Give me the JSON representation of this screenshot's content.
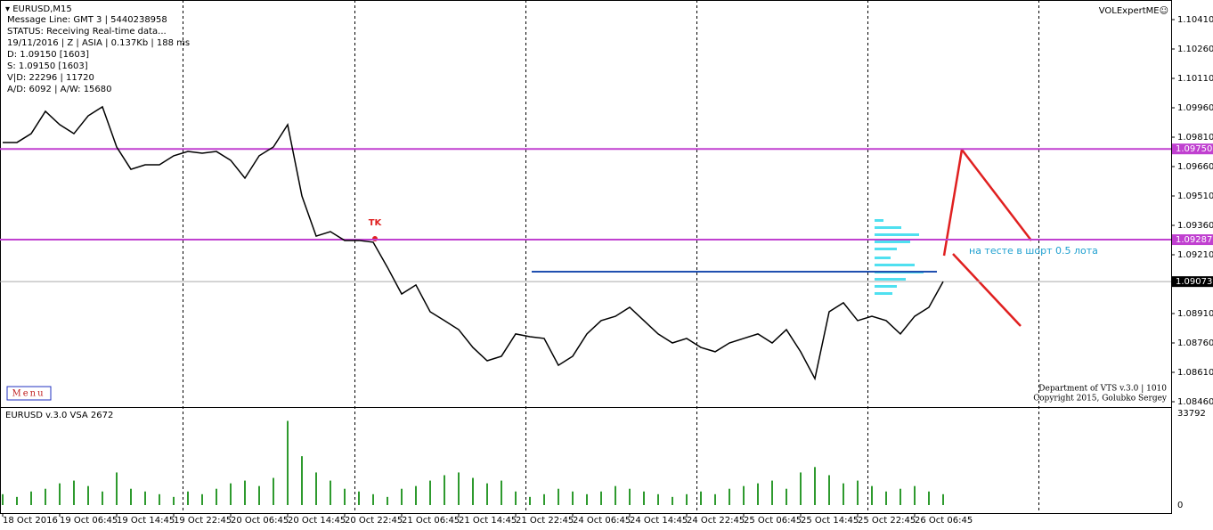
{
  "header": {
    "symbol": "EURUSD,M15",
    "expert": "VOLExpertME☺",
    "info": [
      "Message Line: GMT 3 | 5440238958",
      "STATUS:  Receiving Real-time data...",
      "19/11/2016 | Z | ASIA | 0.137Kb | 188 ms",
      "D: 1.09150  [1603]",
      "S: 1.09150  [1603]",
      "V|D: 22296 | 11720",
      "A/D: 6092 | A/W: 15680"
    ]
  },
  "menu": "Menu",
  "footer": [
    "Department of VTS  v.3.0 | 1010",
    "Copyright 2015, Golubko Sergey"
  ],
  "annotations": {
    "tk": "TK",
    "note": "на тесте в шорт 0.5 лота"
  },
  "chart_data": {
    "type": "line",
    "color": "#000000",
    "categories": [
      "18 Oct 2016",
      null,
      null,
      null,
      "19 Oct 06:45",
      null,
      null,
      null,
      "19 Oct 14:45",
      null,
      null,
      null,
      "19 Oct 22:45",
      null,
      null,
      null,
      "20 Oct 06:45",
      null,
      null,
      null,
      "20 Oct 14:45",
      null,
      null,
      null,
      "20 Oct 22:45",
      null,
      null,
      null,
      "21 Oct 06:45",
      null,
      null,
      null,
      "21 Oct 14:45",
      null,
      null,
      null,
      "21 Oct 22:45",
      null,
      null,
      null,
      "24 Oct 06:45",
      null,
      null,
      null,
      "24 Oct 14:45",
      null,
      null,
      null,
      "24 Oct 22:45",
      null,
      null,
      null,
      "25 Oct 06:45",
      null,
      null,
      null,
      "25 Oct 14:45",
      null,
      null,
      null,
      "25 Oct 22:45",
      null,
      null,
      null,
      "26 Oct 06:45",
      null,
      null
    ],
    "values": [
      1.09783,
      1.09783,
      1.09828,
      1.09942,
      1.09874,
      1.09828,
      1.09919,
      1.09965,
      1.0976,
      1.09646,
      1.09669,
      1.09669,
      1.09715,
      1.09737,
      1.09728,
      1.09737,
      1.09692,
      1.09601,
      1.09715,
      1.0976,
      1.09874,
      1.0951,
      1.09305,
      1.09328,
      1.09283,
      1.09283,
      1.09274,
      1.09146,
      1.0901,
      1.09056,
      1.08919,
      1.08874,
      1.08828,
      1.08737,
      1.08669,
      1.08692,
      1.08806,
      1.08792,
      1.08783,
      1.08646,
      1.08692,
      1.08806,
      1.08874,
      1.08896,
      1.08942,
      1.08874,
      1.08806,
      1.0876,
      1.08783,
      1.08737,
      1.08715,
      1.0876,
      1.08783,
      1.08806,
      1.0876,
      1.08828,
      1.08715,
      1.08578,
      1.08919,
      1.08965,
      1.08874,
      1.08896,
      1.08874,
      1.08806,
      1.08896,
      1.08942,
      1.09073
    ],
    "ylim": [
      1.08395,
      1.10465
    ],
    "yticks": [
      {
        "value": 1.1041,
        "label": "1.10410"
      },
      {
        "value": 1.1026,
        "label": "1.10260"
      },
      {
        "value": 1.1011,
        "label": "1.10110"
      },
      {
        "value": 1.0996,
        "label": "1.09960"
      },
      {
        "value": 1.0981,
        "label": "1.09810"
      },
      {
        "value": 1.0966,
        "label": "1.09660"
      },
      {
        "value": 1.0951,
        "label": "1.09510"
      },
      {
        "value": 1.0936,
        "label": "1.09360"
      },
      {
        "value": 1.0921,
        "label": "1.09210"
      },
      {
        "value": 1.0891,
        "label": "1.08910"
      },
      {
        "value": 1.0876,
        "label": "1.08760"
      },
      {
        "value": 1.0861,
        "label": "1.08610"
      },
      {
        "value": 1.0846,
        "label": "1.08460"
      }
    ],
    "levels": [
      {
        "value": 1.0975,
        "label": "1.09750",
        "color": "#c040d0"
      },
      {
        "value": 1.09287,
        "label": "1.09287",
        "color": "#c040d0"
      }
    ],
    "current": {
      "value": 1.09073,
      "label": "1.09073"
    },
    "volume": {
      "title": "EURUSD v.3.0 VSA 2672",
      "color": "#2e9a2e",
      "ylim": [
        0,
        33792
      ],
      "yticks": [
        33792,
        0
      ],
      "values": [
        4000,
        3000,
        5000,
        6000,
        8000,
        9000,
        7000,
        5000,
        12000,
        6000,
        5000,
        4000,
        3000,
        5000,
        4000,
        6000,
        8000,
        9000,
        7000,
        10000,
        31000,
        18000,
        12000,
        9000,
        6000,
        5000,
        4000,
        3000,
        6000,
        7000,
        9000,
        11000,
        12000,
        10000,
        8000,
        9000,
        5000,
        3000,
        4000,
        6000,
        5000,
        4000,
        5000,
        7000,
        6000,
        5000,
        4000,
        3000,
        4000,
        5000,
        4000,
        6000,
        7000,
        8000,
        9000,
        6000,
        12000,
        14000,
        11000,
        8000,
        9000,
        7000,
        5000,
        6000,
        7000,
        5000,
        4000
      ]
    }
  }
}
